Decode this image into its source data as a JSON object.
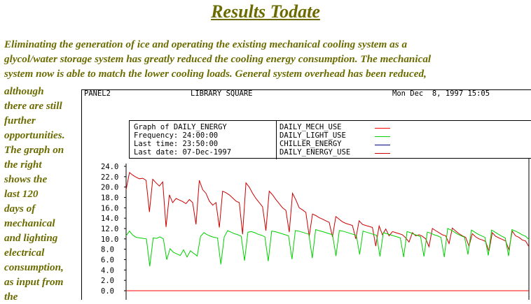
{
  "page": {
    "title": "Results Todate",
    "intro_text": "Eliminating the generation of ice and operating the existing mechanical cooling system as a\nglycol/water storage system has greatly reduced the cooling energy consumption. The mechanical\nsystem now is able to match the lower cooling loads.  General system overhead has been reduced,",
    "side_text": "although\nthere are still\nfurther\nopportunities.\nThe graph on\nthe right\nshows the\nlast 120\n   days of\nmechanical\nand lighting\nelectrical\nconsumption,\nas input from\nthe"
  },
  "panel": {
    "name": "PANEL2",
    "location": "LIBRARY SQUARE",
    "datetime": "Mon Dec  8, 1997 15:05"
  },
  "graph_info": {
    "line1": "Graph of DAILY_ENERGY",
    "line2": "Frequency: 24:00:00",
    "line3": "Last time: 23:50:00",
    "line4": "Last date: 07-Dec-1997"
  },
  "legend": [
    {
      "label": "DAILY_MECH_USE",
      "color": "#ff0000"
    },
    {
      "label": "DAILY_LIGHT_USE",
      "color": "#00d000"
    },
    {
      "label": "CHILLER_ENERGY",
      "color": "#000080"
    },
    {
      "label": "DAILY_ENERGY_USE",
      "color": "#cc0000"
    }
  ],
  "chart_data": {
    "type": "line",
    "title": "",
    "xlabel": "",
    "ylabel": "",
    "ylim": [
      0,
      24
    ],
    "yticks": [
      "24.0",
      "22.0",
      "20.0",
      "18.0",
      "16.0",
      "14.0",
      "12.0",
      "10.0",
      "8.0",
      "6.0",
      "4.0",
      "2.0",
      "0.0"
    ],
    "series": [
      {
        "name": "DAILY_ENERGY_USE",
        "color": "#cc0000",
        "values": [
          19.5,
          22.8,
          22.3,
          21.9,
          21.6,
          21.7,
          21.3,
          15.2,
          21.5,
          20.8,
          20.2,
          21.0,
          12.3,
          18.5,
          17.0,
          17.8,
          17.5,
          17.2,
          16.8,
          17.6,
          17.0,
          12.8,
          21.3,
          19.5,
          18.8,
          17.3,
          16.5,
          17.0,
          12.2,
          19.2,
          18.9,
          18.5,
          17.9,
          17.3,
          17.0,
          10.9,
          20.8,
          20.0,
          18.8,
          17.8,
          17.0,
          16.2,
          11.6,
          19.2,
          18.5,
          17.6,
          16.8,
          16.0,
          15.5,
          11.3,
          18.8,
          17.5,
          16.0,
          15.6,
          15.1,
          10.5,
          14.8,
          14.5,
          14.1,
          13.8,
          13.5,
          13.2,
          10.4,
          14.3,
          13.8,
          13.3,
          13.0,
          12.8,
          12.6,
          10.0,
          13.5,
          12.8,
          12.6,
          12.4,
          12.2,
          8.6,
          12.5,
          10.8,
          11.9,
          10.6,
          11.4,
          11.2,
          11.0,
          10.8,
          10.2,
          9.4,
          11.2,
          10.6,
          10.8,
          10.5,
          10.0,
          8.5,
          12.0,
          11.6,
          11.2,
          10.8,
          10.6,
          9.1,
          12.1,
          11.5,
          11.0,
          10.6,
          10.3,
          8.6,
          11.0,
          10.4,
          10.0,
          9.8,
          9.5,
          7.6,
          11.2,
          10.5,
          10.2,
          9.9,
          9.6,
          7.9,
          11.5,
          10.6,
          10.3,
          9.8,
          9.6,
          8.5
        ]
      },
      {
        "name": "DAILY_LIGHT_USE",
        "color": "#00d000",
        "values": [
          10.6,
          11.5,
          10.7,
          10.3,
          10.2,
          10.1,
          10.0,
          4.7,
          10.2,
          10.1,
          10.4,
          10.0,
          6.0,
          8.1,
          7.4,
          7.1,
          6.8,
          7.9,
          6.5,
          7.7,
          7.2,
          6.7,
          10.5,
          11.2,
          10.8,
          10.5,
          10.3,
          10.2,
          5.1,
          10.4,
          11.6,
          11.3,
          11.0,
          10.8,
          10.5,
          5.8,
          11.3,
          11.4,
          11.2,
          10.9,
          10.7,
          10.4,
          5.7,
          11.5,
          11.4,
          11.2,
          11.0,
          10.8,
          10.6,
          6.1,
          11.6,
          11.5,
          11.3,
          11.1,
          10.9,
          6.3,
          11.8,
          11.6,
          11.4,
          11.2,
          11.0,
          10.8,
          6.7,
          11.6,
          11.5,
          11.3,
          11.1,
          10.9,
          10.7,
          7.0,
          11.5,
          11.3,
          11.1,
          10.9,
          10.7,
          6.6,
          11.2,
          11.0,
          10.8,
          10.6,
          10.4,
          10.2,
          6.5,
          11.4,
          11.2,
          10.9,
          10.7,
          10.4,
          6.6,
          11.3,
          11.1,
          10.8,
          10.6,
          10.3,
          6.5,
          12.0,
          11.7,
          11.3,
          10.9,
          10.6,
          10.3,
          7.0,
          11.7,
          11.3,
          10.9,
          10.6,
          10.3,
          6.8,
          11.7,
          11.3,
          10.9,
          10.5,
          10.2,
          6.7,
          11.8,
          11.5,
          11.2,
          10.8,
          10.5,
          9.9
        ]
      },
      {
        "name": "CHILLER_ENERGY",
        "color": "#000080",
        "values": []
      },
      {
        "name": "DAILY_MECH_USE",
        "color": "#ff0000",
        "values": [
          0,
          0,
          0,
          0,
          0,
          0,
          0,
          0,
          0,
          0,
          0,
          0,
          0,
          0,
          0,
          0,
          0,
          0,
          0,
          0,
          0,
          0,
          0,
          0,
          0,
          0,
          0,
          0,
          0,
          0,
          0,
          0,
          0,
          0,
          0,
          0,
          0,
          0,
          0,
          0,
          0,
          0,
          0,
          0,
          0,
          0,
          0,
          0,
          0,
          0,
          0,
          0,
          0,
          0,
          0,
          0,
          0,
          0,
          0,
          0,
          0,
          0,
          0,
          0,
          0,
          0,
          0,
          0,
          0,
          0,
          0,
          0,
          0,
          0,
          0,
          0,
          0,
          0,
          0,
          0,
          0,
          0,
          0,
          0,
          0,
          0,
          0,
          0,
          0,
          0,
          0,
          0,
          0,
          0,
          0,
          0,
          0,
          0,
          0,
          0,
          0,
          0,
          0,
          0,
          0,
          0,
          0,
          0,
          0,
          0,
          0,
          0,
          0,
          0,
          0,
          0,
          0,
          0,
          0,
          0
        ]
      }
    ]
  }
}
